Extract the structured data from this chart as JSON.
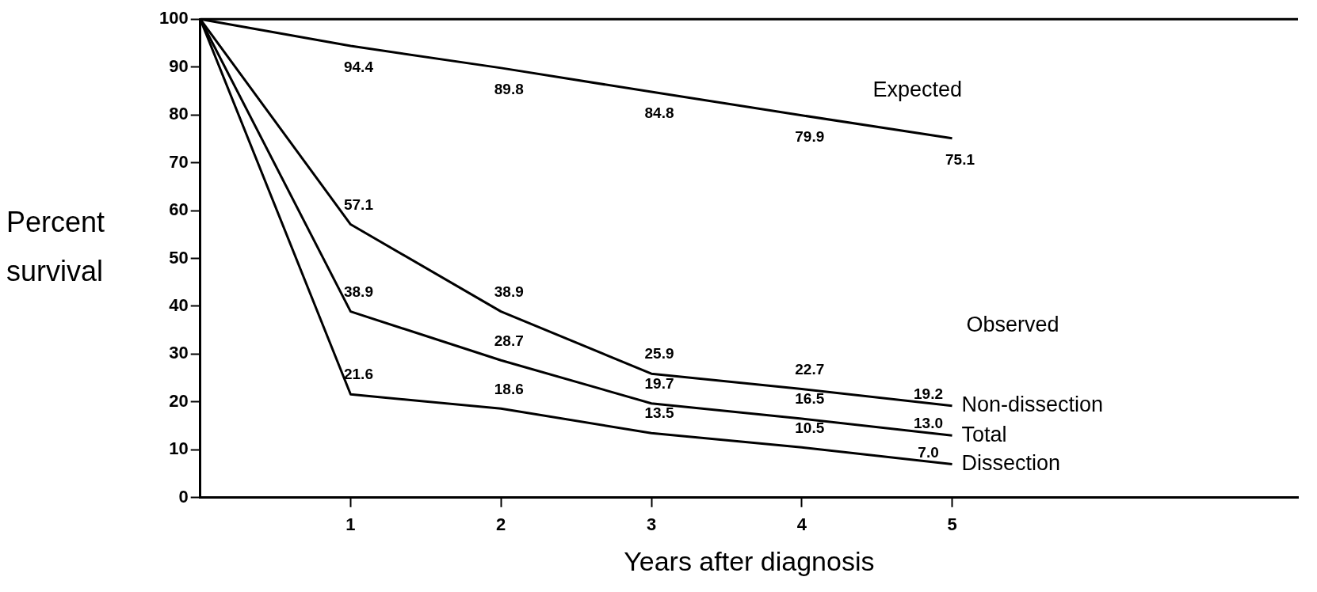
{
  "chart_data": {
    "type": "line",
    "xlabel": "Years after diagnosis",
    "ylabel": "Percent survival",
    "x": [
      0,
      1,
      2,
      3,
      4,
      5
    ],
    "xlim": [
      0,
      7.3
    ],
    "xticks": [
      1,
      2,
      3,
      4,
      5
    ],
    "ylim": [
      0,
      100
    ],
    "yticks": [
      0,
      10,
      20,
      30,
      40,
      50,
      60,
      70,
      80,
      90,
      100
    ],
    "grid": false,
    "legend": false,
    "marker": "none",
    "line_style": "solid",
    "series": [
      {
        "name": "Expected",
        "color": "#000000",
        "values": [
          100,
          94.4,
          89.8,
          84.8,
          79.9,
          75.1
        ],
        "value_labels": [
          null,
          "94.4",
          "89.8",
          "84.8",
          "79.9",
          "75.1"
        ]
      },
      {
        "name": "Non-dissection",
        "color": "#000000",
        "values": [
          100,
          57.1,
          38.9,
          25.9,
          22.7,
          19.2
        ],
        "value_labels": [
          null,
          "57.1",
          "38.9",
          "25.9",
          "22.7",
          "19.2"
        ]
      },
      {
        "name": "Total",
        "color": "#000000",
        "values": [
          100,
          38.9,
          28.7,
          19.7,
          16.5,
          13.0
        ],
        "value_labels": [
          null,
          "38.9",
          "28.7",
          "19.7",
          "16.5",
          "13.0"
        ]
      },
      {
        "name": "Dissection",
        "color": "#000000",
        "values": [
          100,
          21.6,
          18.6,
          13.5,
          10.5,
          7.0
        ],
        "value_labels": [
          null,
          "21.6",
          "18.6",
          "13.5",
          "10.5",
          "7.0"
        ]
      }
    ],
    "annotations": [
      "Observed"
    ]
  }
}
